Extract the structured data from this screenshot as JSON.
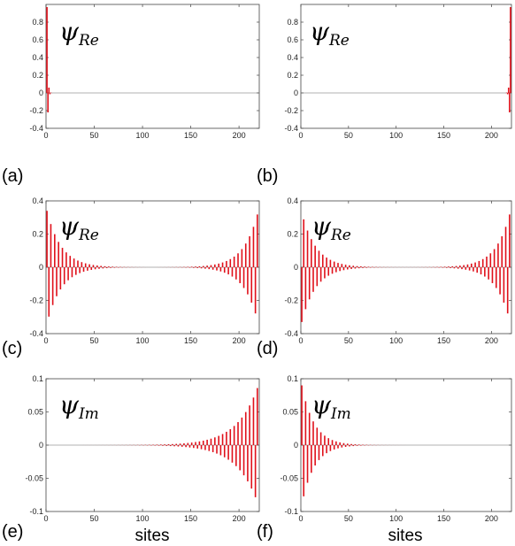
{
  "chart_data": [
    {
      "type": "bar",
      "panel": "(a)",
      "annotation_symbol": "ψ",
      "annotation_sub": "Re",
      "xlabel": "",
      "xlim": [
        0,
        221
      ],
      "ylim": [
        -0.4,
        1.0
      ],
      "xticks": [
        0,
        50,
        100,
        150,
        200
      ],
      "yticks": [
        -0.4,
        -0.2,
        0,
        0.2,
        0.4,
        0.6,
        0.8
      ],
      "ytick_labels": [
        "-0.4",
        "-0.2",
        "0",
        "0.2",
        "0.4",
        "0.6",
        "0.8"
      ],
      "sites": [
        1,
        2,
        3,
        4,
        5,
        6,
        7
      ],
      "values": [
        0.97,
        -0.22,
        0.06,
        -0.015,
        0.004,
        -0.001,
        0.0
      ]
    },
    {
      "type": "bar",
      "panel": "(b)",
      "annotation_symbol": "ψ",
      "annotation_sub": "Re",
      "xlabel": "",
      "xlim": [
        0,
        221
      ],
      "ylim": [
        -0.4,
        1.0
      ],
      "xticks": [
        0,
        50,
        100,
        150,
        200
      ],
      "yticks": [
        -0.4,
        -0.2,
        0,
        0.2,
        0.4,
        0.6,
        0.8
      ],
      "ytick_labels": [
        "-0.4",
        "-0.2",
        "0",
        "0.2",
        "0.4",
        "0.6",
        "0.8"
      ],
      "sites": [
        214,
        215,
        216,
        217,
        218,
        219,
        220
      ],
      "values": [
        0.0,
        -0.001,
        0.004,
        -0.015,
        0.06,
        -0.22,
        0.97
      ]
    },
    {
      "type": "bar",
      "panel": "(c)",
      "annotation_symbol": "ψ",
      "annotation_sub": "Re",
      "xlabel": "",
      "xlim": [
        0,
        221
      ],
      "ylim": [
        -0.4,
        0.4
      ],
      "xticks": [
        0,
        50,
        100,
        150,
        200
      ],
      "yticks": [
        -0.4,
        -0.2,
        0,
        0.2,
        0.4
      ],
      "ytick_labels": [
        "-0.4",
        "-0.2",
        "0",
        "0.2",
        "0.4"
      ],
      "decay_profile": {
        "sites_from": 1,
        "sites_to": 220,
        "step": 2,
        "left_amplitude": 0.34,
        "right_amplitude": 0.34,
        "decay_length_sites": 15,
        "alternating_sign": true
      }
    },
    {
      "type": "bar",
      "panel": "(d)",
      "annotation_symbol": "ψ",
      "annotation_sub": "Re",
      "xlabel": "",
      "xlim": [
        0,
        221
      ],
      "ylim": [
        -0.4,
        0.4
      ],
      "xticks": [
        0,
        50,
        100,
        150,
        200
      ],
      "yticks": [
        -0.4,
        -0.2,
        0,
        0.2,
        0.4
      ],
      "ytick_labels": [
        "-0.4",
        "-0.2",
        "0",
        "0.2",
        "0.4"
      ],
      "decay_profile": {
        "sites_from": 1,
        "sites_to": 220,
        "step": 2,
        "left_amplitude": 0.33,
        "right_amplitude": 0.34,
        "decay_length_sites": 15,
        "alternating_sign": true,
        "left_sign_flip": true
      }
    },
    {
      "type": "bar",
      "panel": "(e)",
      "annotation_symbol": "ψ",
      "annotation_sub": "Im",
      "xlabel": "sites",
      "xlim": [
        0,
        221
      ],
      "ylim": [
        -0.1,
        0.1
      ],
      "xticks": [
        0,
        50,
        100,
        150,
        200
      ],
      "yticks": [
        -0.1,
        -0.05,
        0,
        0.05,
        0.1
      ],
      "ytick_labels": [
        "-0.1",
        "-0.05",
        "0",
        "0.05",
        "0.1"
      ],
      "decay_profile": {
        "sites_from": 1,
        "sites_to": 220,
        "step": 2,
        "left_amplitude": 0.0,
        "right_amplitude": 0.09,
        "decay_length_sites": 22,
        "alternating_sign": true
      }
    },
    {
      "type": "bar",
      "panel": "(f)",
      "annotation_symbol": "ψ",
      "annotation_sub": "Im",
      "xlabel": "sites",
      "xlim": [
        0,
        221
      ],
      "ylim": [
        -0.1,
        0.1
      ],
      "xticks": [
        0,
        50,
        100,
        150,
        200
      ],
      "yticks": [
        -0.1,
        -0.05,
        0,
        0.05,
        0.1
      ],
      "ytick_labels": [
        "-0.1",
        "-0.05",
        "0",
        "0.05",
        "0.1"
      ],
      "decay_profile": {
        "sites_from": 1,
        "sites_to": 220,
        "step": 2,
        "left_amplitude": 0.09,
        "right_amplitude": 0.0,
        "decay_length_sites": 13,
        "alternating_sign": true
      }
    }
  ],
  "colors": {
    "bars": "#e0101a",
    "axes": "#444444",
    "baseline": "#999999",
    "background": "#ffffff"
  }
}
